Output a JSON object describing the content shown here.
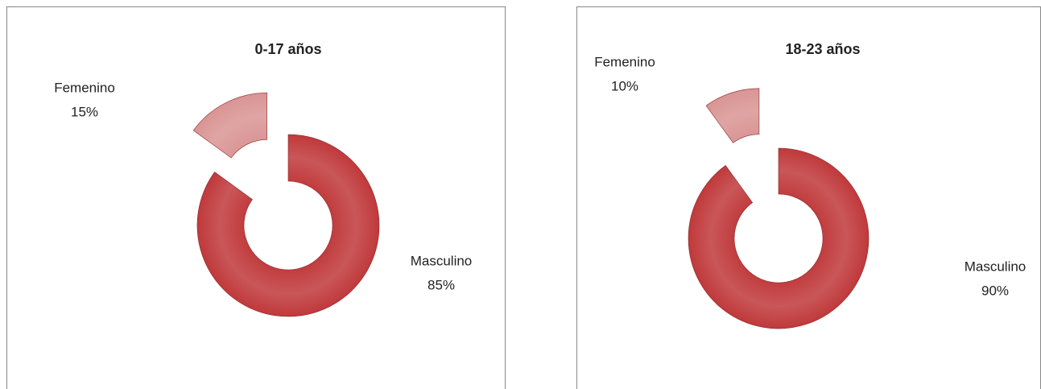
{
  "chart_data": [
    {
      "type": "pie",
      "title": "0-17 años",
      "categories": [
        "Masculino",
        "Femenino"
      ],
      "values": [
        85,
        15
      ],
      "value_labels": [
        "85%",
        "15%"
      ],
      "colors": [
        "#c0393b",
        "#d99594"
      ]
    },
    {
      "type": "pie",
      "title": "18-23 años",
      "categories": [
        "Masculino",
        "Femenino"
      ],
      "values": [
        90,
        10
      ],
      "value_labels": [
        "90%",
        "10%"
      ],
      "colors": [
        "#c0393b",
        "#d99594"
      ]
    }
  ]
}
